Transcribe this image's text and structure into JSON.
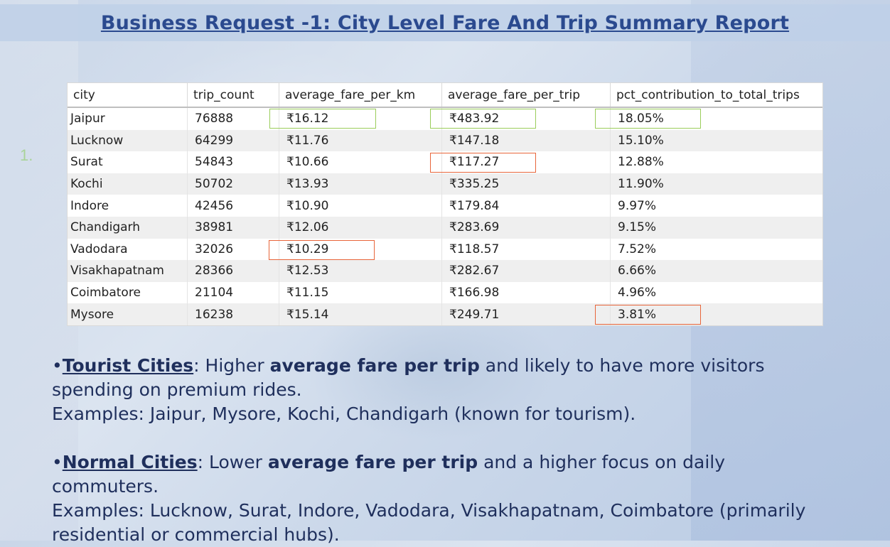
{
  "title": "Business Request -1: City Level Fare And Trip Summary Report",
  "side_number": "1.",
  "table": {
    "columns": [
      "city",
      "trip_count",
      "average_fare_per_km",
      "average_fare_per_trip",
      "pct_contribution_to_total_trips"
    ],
    "rows": [
      [
        "Jaipur",
        "76888",
        "₹16.12",
        "₹483.92",
        "18.05%"
      ],
      [
        "Lucknow",
        "64299",
        "₹11.76",
        "₹147.18",
        "15.10%"
      ],
      [
        "Surat",
        "54843",
        "₹10.66",
        "₹117.27",
        "12.88%"
      ],
      [
        "Kochi",
        "50702",
        "₹13.93",
        "₹335.25",
        "11.90%"
      ],
      [
        "Indore",
        "42456",
        "₹10.90",
        "₹179.84",
        "9.97%"
      ],
      [
        "Chandigarh",
        "38981",
        "₹12.06",
        "₹283.69",
        "9.15%"
      ],
      [
        "Vadodara",
        "32026",
        "₹10.29",
        "₹118.57",
        "7.52%"
      ],
      [
        "Visakhapatnam",
        "28366",
        "₹12.53",
        "₹282.67",
        "6.66%"
      ],
      [
        "Coimbatore",
        "21104",
        "₹11.15",
        "₹166.98",
        "4.96%"
      ],
      [
        "Mysore",
        "16238",
        "₹15.14",
        "₹249.71",
        "3.81%"
      ]
    ],
    "highlight_colors": {
      "green": "#9acd5a",
      "red": "#e8653a"
    }
  },
  "notes": {
    "tourist": {
      "bullet": "•",
      "label": "Tourist Cities",
      "sep": ": Higher ",
      "bold": "average fare per trip",
      "rest": " and likely to have more visitors spending on premium rides.",
      "examples": "Examples: Jaipur, Mysore, Kochi, Chandigarh (known for tourism)."
    },
    "normal": {
      "bullet": "•",
      "label": "Normal Cities",
      "sep": ": Lower ",
      "bold": "average fare per trip",
      "rest": " and a higher focus on daily commuters.",
      "examples": "Examples: Lucknow, Surat, Indore, Vadodara, Visakhapatnam, Coimbatore (primarily residential or commercial hubs)."
    }
  }
}
